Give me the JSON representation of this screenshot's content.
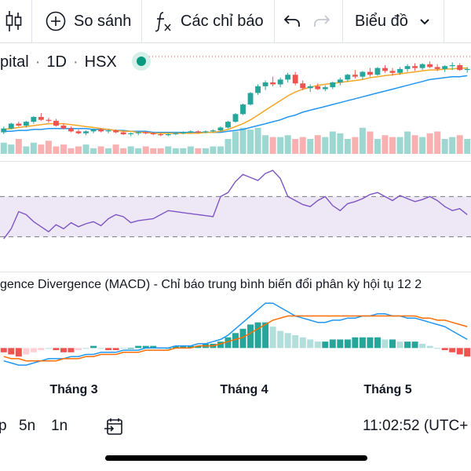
{
  "toolbar": {
    "compare_label": "So sánh",
    "indicators_label": "Các chỉ báo",
    "chart_type_label": "Biểu đồ"
  },
  "legend": {
    "symbol_name": "pital",
    "interval": "1D",
    "exchange": "HSX"
  },
  "macd": {
    "title": "gence Divergence (MACD) - Chỉ báo trung bình biến đổi phân kỳ hội tụ 12 2"
  },
  "x_axis": {
    "months": [
      "Tháng 3",
      "Tháng 4",
      "Tháng 5"
    ]
  },
  "bottom": {
    "timeframes": [
      "p",
      "5n",
      "1n"
    ],
    "clock": "11:02:52 (UTC+"
  },
  "colors": {
    "up": "#26a69a",
    "down": "#ef5350",
    "ma_fast": "#f5a623",
    "ma_slow": "#2196f3",
    "rsi": "#7e57c2",
    "rsi_band": "#ede7f6",
    "macd_line": "#2196f3",
    "signal_line": "#ff6d00"
  },
  "chart_data": [
    {
      "type": "candlestick",
      "title": "",
      "candles": [
        [
          0,
          46,
          52,
          44,
          50
        ],
        [
          1,
          50,
          56,
          49,
          55
        ],
        [
          2,
          55,
          57,
          52,
          53
        ],
        [
          3,
          53,
          58,
          51,
          57
        ],
        [
          4,
          57,
          63,
          55,
          62
        ],
        [
          5,
          62,
          66,
          58,
          59
        ],
        [
          6,
          59,
          61,
          56,
          58
        ],
        [
          7,
          58,
          60,
          52,
          53
        ],
        [
          8,
          53,
          55,
          49,
          50
        ],
        [
          9,
          50,
          52,
          46,
          47
        ],
        [
          10,
          47,
          49,
          44,
          45
        ],
        [
          11,
          45,
          48,
          43,
          47
        ],
        [
          12,
          47,
          50,
          45,
          49
        ],
        [
          13,
          49,
          50,
          46,
          47
        ],
        [
          14,
          47,
          49,
          45,
          48
        ],
        [
          15,
          48,
          49,
          45,
          46
        ],
        [
          16,
          46,
          47,
          43,
          44
        ],
        [
          17,
          44,
          46,
          42,
          45
        ],
        [
          18,
          45,
          47,
          43,
          46
        ],
        [
          19,
          46,
          47,
          44,
          45
        ],
        [
          20,
          45,
          46,
          43,
          44
        ],
        [
          21,
          44,
          45,
          42,
          43
        ],
        [
          22,
          43,
          45,
          42,
          44
        ],
        [
          23,
          44,
          46,
          43,
          45
        ],
        [
          24,
          45,
          47,
          44,
          46
        ],
        [
          25,
          46,
          48,
          45,
          47
        ],
        [
          26,
          47,
          48,
          45,
          46
        ],
        [
          27,
          46,
          48,
          45,
          47
        ],
        [
          28,
          47,
          49,
          46,
          48
        ],
        [
          29,
          48,
          52,
          47,
          51
        ],
        [
          30,
          51,
          58,
          50,
          57
        ],
        [
          31,
          57,
          66,
          56,
          65
        ],
        [
          32,
          65,
          76,
          64,
          75
        ],
        [
          33,
          75,
          88,
          74,
          87
        ],
        [
          34,
          87,
          96,
          85,
          94
        ],
        [
          35,
          94,
          100,
          90,
          98
        ],
        [
          36,
          98,
          104,
          94,
          96
        ],
        [
          37,
          96,
          103,
          93,
          101
        ],
        [
          38,
          101,
          108,
          98,
          106
        ],
        [
          39,
          106,
          109,
          95,
          97
        ],
        [
          40,
          97,
          100,
          90,
          92
        ],
        [
          41,
          92,
          96,
          88,
          94
        ],
        [
          42,
          94,
          97,
          90,
          91
        ],
        [
          43,
          91,
          95,
          89,
          93
        ],
        [
          44,
          93,
          99,
          91,
          98
        ],
        [
          45,
          98,
          103,
          95,
          101
        ],
        [
          46,
          101,
          107,
          99,
          106
        ],
        [
          47,
          106,
          111,
          102,
          104
        ],
        [
          48,
          104,
          110,
          101,
          109
        ],
        [
          49,
          109,
          113,
          104,
          106
        ],
        [
          50,
          106,
          114,
          105,
          113
        ],
        [
          51,
          113,
          116,
          108,
          110
        ],
        [
          52,
          110,
          113,
          105,
          108
        ],
        [
          53,
          108,
          114,
          106,
          112
        ],
        [
          54,
          112,
          117,
          109,
          115
        ],
        [
          55,
          115,
          118,
          110,
          113
        ],
        [
          56,
          113,
          118,
          111,
          117
        ],
        [
          57,
          117,
          120,
          113,
          114
        ],
        [
          58,
          114,
          117,
          110,
          112
        ],
        [
          59,
          112,
          116,
          109,
          115
        ],
        [
          60,
          115,
          119,
          111,
          116
        ],
        [
          61,
          116,
          118,
          110,
          111
        ],
        [
          62,
          111,
          114,
          108,
          112
        ]
      ],
      "volume": [
        6,
        5,
        8,
        4,
        6,
        5,
        7,
        4,
        5,
        3,
        4,
        5,
        3,
        4,
        3,
        5,
        3,
        4,
        3,
        4,
        3,
        3,
        4,
        3,
        3,
        4,
        3,
        3,
        4,
        4,
        8,
        12,
        14,
        13,
        14,
        10,
        9,
        9,
        10,
        8,
        9,
        8,
        10,
        9,
        12,
        11,
        8,
        9,
        14,
        12,
        8,
        10,
        9,
        9,
        12,
        10,
        9,
        11,
        12,
        8,
        9,
        10,
        8
      ],
      "ma_fast": [
        49,
        50,
        51,
        52,
        53,
        54,
        55,
        55,
        55,
        54,
        53,
        52,
        51,
        50,
        49,
        48,
        47,
        47,
        46,
        46,
        45,
        45,
        45,
        45,
        45,
        45,
        45,
        46,
        46,
        47,
        49,
        52,
        55,
        59,
        64,
        69,
        74,
        79,
        84,
        88,
        91,
        93,
        95,
        96,
        97,
        98,
        99,
        100,
        101,
        103,
        104,
        105,
        106,
        107,
        108,
        109,
        110,
        111,
        111,
        112,
        112,
        113,
        113
      ],
      "ma_slow": [
        47,
        47,
        48,
        48,
        49,
        49,
        50,
        50,
        50,
        50,
        50,
        50,
        49,
        49,
        49,
        48,
        48,
        47,
        47,
        47,
        46,
        46,
        46,
        46,
        46,
        46,
        46,
        46,
        46,
        46,
        47,
        48,
        49,
        51,
        53,
        55,
        57,
        59,
        62,
        64,
        67,
        69,
        71,
        73,
        75,
        77,
        79,
        81,
        83,
        85,
        87,
        89,
        91,
        93,
        95,
        97,
        99,
        101,
        102,
        103,
        104,
        104,
        105
      ]
    },
    {
      "type": "line",
      "title": "",
      "ylim": [
        0,
        100
      ],
      "bands": [
        70,
        30
      ],
      "values": [
        28,
        38,
        55,
        52,
        45,
        40,
        35,
        42,
        38,
        44,
        40,
        43,
        45,
        41,
        48,
        52,
        50,
        44,
        46,
        47,
        48,
        52,
        56,
        55,
        54,
        53,
        52,
        51,
        50,
        70,
        74,
        85,
        92,
        89,
        86,
        93,
        96,
        88,
        70,
        66,
        62,
        60,
        66,
        70,
        61,
        56,
        63,
        65,
        68,
        72,
        74,
        70,
        66,
        71,
        68,
        65,
        67,
        70,
        66,
        60,
        56,
        58,
        52
      ],
      "values_description": "RSI oscillator between dashed bands"
    },
    {
      "type": "bar",
      "title": "",
      "histogram": [
        -2,
        -3,
        -4,
        -3,
        -2,
        -1,
        0,
        -1,
        -2,
        -2,
        -1,
        0,
        1,
        0,
        -1,
        -1,
        0,
        0,
        1,
        1,
        1,
        0,
        0,
        1,
        1,
        1,
        1,
        2,
        2,
        3,
        5,
        7,
        9,
        11,
        12,
        12,
        10,
        8,
        7,
        6,
        5,
        4,
        3,
        3,
        4,
        4,
        4,
        5,
        5,
        5,
        5,
        4,
        4,
        3,
        3,
        3,
        2,
        1,
        0,
        -1,
        -2,
        -3,
        -4
      ],
      "macd_line": [
        -6,
        -7,
        -8,
        -8,
        -7,
        -6,
        -5,
        -5,
        -5,
        -4,
        -4,
        -3,
        -3,
        -2,
        -2,
        -2,
        -1,
        -1,
        -1,
        0,
        0,
        0,
        0,
        1,
        1,
        1,
        2,
        2,
        3,
        4,
        6,
        9,
        12,
        15,
        18,
        21,
        21,
        19,
        17,
        15,
        14,
        13,
        12,
        12,
        13,
        13,
        14,
        14,
        15,
        15,
        16,
        16,
        15,
        15,
        14,
        14,
        13,
        12,
        11,
        10,
        8,
        6,
        4
      ],
      "signal_line": [
        -4,
        -5,
        -5,
        -6,
        -6,
        -6,
        -6,
        -6,
        -5,
        -5,
        -5,
        -4,
        -4,
        -3,
        -3,
        -3,
        -2,
        -2,
        -2,
        -1,
        -1,
        -1,
        -1,
        0,
        0,
        0,
        1,
        1,
        1,
        2,
        3,
        4,
        5,
        7,
        9,
        11,
        13,
        14,
        15,
        15,
        15,
        15,
        15,
        15,
        15,
        15,
        15,
        15,
        15,
        15,
        15,
        15,
        15,
        15,
        15,
        15,
        14,
        14,
        13,
        13,
        12,
        11,
        10
      ]
    }
  ]
}
